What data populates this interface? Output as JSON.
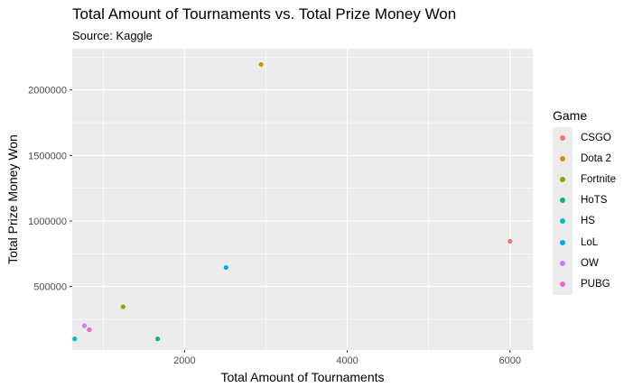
{
  "chart_data": {
    "type": "scatter",
    "title": "Total Amount of Tournaments vs. Total Prize Money Won",
    "subtitle": "Source: Kaggle",
    "xlabel": "Total Amount of Tournaments",
    "ylabel": "Total Prize Money Won",
    "xlim": [
      620,
      6280
    ],
    "ylim": [
      15000,
      2315000
    ],
    "xticks": [
      2000,
      4000,
      6000
    ],
    "yticks": [
      500000,
      1000000,
      1500000,
      2000000
    ],
    "xtick_labels": [
      "2000",
      "4000",
      "6000"
    ],
    "ytick_labels": [
      "500000",
      "1000000",
      "1500000",
      "2000000"
    ],
    "grid": true,
    "legend_title": "Game",
    "legend_position": "right",
    "series": [
      {
        "name": "CSGO",
        "color": "#F8766D",
        "points": [
          {
            "x": 6000,
            "y": 845000
          }
        ]
      },
      {
        "name": "Dota 2",
        "color": "#CD9600",
        "points": [
          {
            "x": 2940,
            "y": 2195000
          }
        ]
      },
      {
        "name": "Fortnite",
        "color": "#7CAE00",
        "points": [
          {
            "x": 1245,
            "y": 345000
          }
        ]
      },
      {
        "name": "HoTS",
        "color": "#00BE67",
        "points": [
          {
            "x": 1670,
            "y": 100000
          }
        ]
      },
      {
        "name": "HS",
        "color": "#00BFC4",
        "points": [
          {
            "x": 650,
            "y": 100000
          }
        ]
      },
      {
        "name": "LoL",
        "color": "#00A9FF",
        "points": [
          {
            "x": 2510,
            "y": 645000
          }
        ]
      },
      {
        "name": "OW",
        "color": "#C77CFF",
        "points": [
          {
            "x": 770,
            "y": 200000
          }
        ]
      },
      {
        "name": "PUBG",
        "color": "#FF61CC",
        "points": [
          {
            "x": 830,
            "y": 170000
          }
        ]
      }
    ]
  }
}
